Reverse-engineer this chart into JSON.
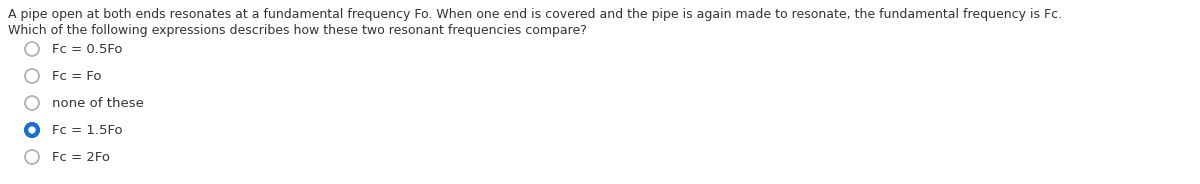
{
  "question_line1": "A pipe open at both ends resonates at a fundamental frequency Fo. When one end is covered and the pipe is again made to resonate, the fundamental frequency is Fc.",
  "question_line2": "Which of the following expressions describes how these two resonant frequencies compare?",
  "options": [
    "Fc = 0.5Fo",
    "Fc = Fo",
    "none of these",
    "Fc = 1.5Fo",
    "Fc = 2Fo"
  ],
  "selected_index": 3,
  "bg_color": "#ffffff",
  "text_color": "#333333",
  "radio_border_color": "#aaaaaa",
  "radio_selected_fill": "#1a6fcf",
  "radio_selected_border": "#1a6fcf",
  "font_size_question": 9.0,
  "font_size_options": 9.5
}
